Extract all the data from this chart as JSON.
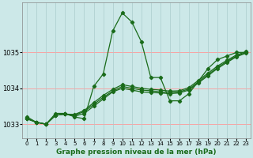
{
  "xlabel": "Graphe pression niveau de la mer (hPa)",
  "bg_color": "#cce8e8",
  "grid_color_h": "#ff9999",
  "grid_color_v": "#aacccc",
  "line_color": "#1a6b1a",
  "ylim": [
    1032.6,
    1036.4
  ],
  "xlim": [
    -0.5,
    23.5
  ],
  "yticks": [
    1033,
    1034,
    1035
  ],
  "xticks": [
    0,
    1,
    2,
    3,
    4,
    5,
    6,
    7,
    8,
    9,
    10,
    11,
    12,
    13,
    14,
    15,
    16,
    17,
    18,
    19,
    20,
    21,
    22,
    23
  ],
  "series": [
    [
      1033.2,
      1033.05,
      1033.0,
      1033.3,
      1033.3,
      1033.2,
      1033.15,
      1034.05,
      1034.4,
      1035.6,
      1036.1,
      1035.85,
      1035.3,
      1034.3,
      1034.3,
      1033.65,
      1033.65,
      1033.85,
      1034.2,
      1034.55,
      1034.8,
      1034.9,
      1035.0,
      1035.0
    ],
    [
      1033.15,
      1033.05,
      1033.0,
      1033.25,
      1033.28,
      1033.22,
      1033.3,
      1033.5,
      1033.7,
      1033.9,
      1034.0,
      1033.95,
      1033.9,
      1033.88,
      1033.87,
      1033.85,
      1033.87,
      1033.95,
      1034.15,
      1034.35,
      1034.55,
      1034.72,
      1034.88,
      1034.98
    ],
    [
      1033.15,
      1033.05,
      1033.0,
      1033.25,
      1033.28,
      1033.25,
      1033.35,
      1033.55,
      1033.75,
      1033.92,
      1034.05,
      1034.0,
      1033.95,
      1033.93,
      1033.9,
      1033.88,
      1033.9,
      1033.98,
      1034.18,
      1034.38,
      1034.58,
      1034.75,
      1034.9,
      1035.0
    ],
    [
      1033.15,
      1033.05,
      1033.0,
      1033.25,
      1033.28,
      1033.27,
      1033.38,
      1033.6,
      1033.8,
      1033.97,
      1034.1,
      1034.05,
      1034.0,
      1033.97,
      1033.95,
      1033.92,
      1033.93,
      1034.02,
      1034.22,
      1034.42,
      1034.62,
      1034.78,
      1034.93,
      1035.02
    ]
  ]
}
